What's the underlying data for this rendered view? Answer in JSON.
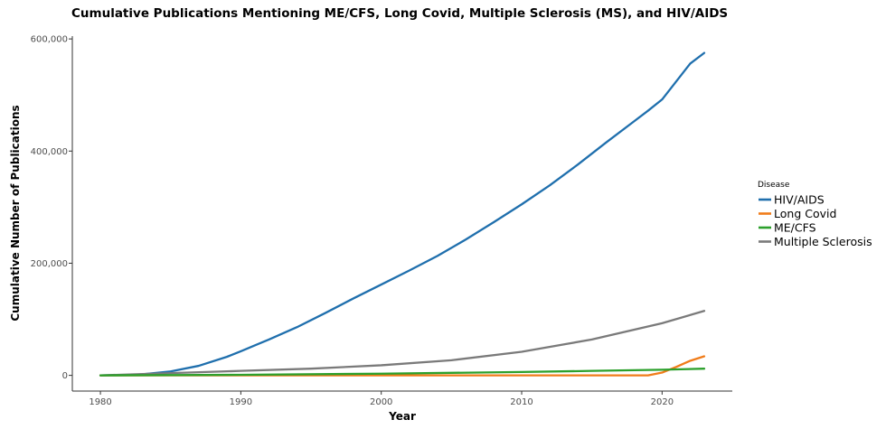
{
  "chart_data": {
    "type": "line",
    "title": "Cumulative Publications Mentioning ME/CFS, Long Covid, Multiple Sclerosis (MS), and HIV/AIDS",
    "xlabel": "Year",
    "ylabel": "Cumulative Number of Publications",
    "xlim": [
      1978,
      2025
    ],
    "ylim": [
      -28000,
      605000
    ],
    "xticks": [
      1980,
      1990,
      2000,
      2010,
      2020
    ],
    "xtick_labels": [
      "1980",
      "1990",
      "2000",
      "2010",
      "2020"
    ],
    "yticks": [
      0,
      200000,
      400000,
      600000
    ],
    "ytick_labels": [
      "0",
      "200,000",
      "400,000",
      "600,000"
    ],
    "grid": false,
    "legend": {
      "title": "Disease",
      "position": "right"
    },
    "series": [
      {
        "name": "HIV/AIDS",
        "color": "#1f6fad",
        "x": [
          1980,
          1982,
          1983,
          1985,
          1987,
          1989,
          1990,
          1992,
          1994,
          1996,
          1998,
          2000,
          2002,
          2004,
          2006,
          2008,
          2010,
          2012,
          2014,
          2016,
          2018,
          2019,
          2020,
          2022,
          2023
        ],
        "y": [
          0,
          500,
          2000,
          7000,
          17000,
          33000,
          43000,
          64000,
          86000,
          111000,
          137000,
          162000,
          187000,
          213000,
          242000,
          273000,
          305000,
          339000,
          376000,
          415000,
          453000,
          472000,
          492000,
          556000,
          575000
        ]
      },
      {
        "name": "Long Covid",
        "color": "#f07c1a",
        "x": [
          1980,
          2018,
          2019,
          2020,
          2021,
          2022,
          2023
        ],
        "y": [
          0,
          0,
          0,
          5000,
          15000,
          26000,
          34000
        ]
      },
      {
        "name": "ME/CFS",
        "color": "#2ca02c",
        "x": [
          1980,
          1990,
          2000,
          2010,
          2015,
          2020,
          2023
        ],
        "y": [
          0,
          1000,
          3000,
          6000,
          8000,
          10000,
          12000
        ]
      },
      {
        "name": "Multiple Sclerosis",
        "color": "#7a7a7a",
        "x": [
          1980,
          1985,
          1990,
          1995,
          2000,
          2005,
          2010,
          2015,
          2020,
          2023
        ],
        "y": [
          0,
          4000,
          8000,
          12000,
          18000,
          27000,
          42000,
          64000,
          93000,
          115000
        ]
      }
    ]
  }
}
